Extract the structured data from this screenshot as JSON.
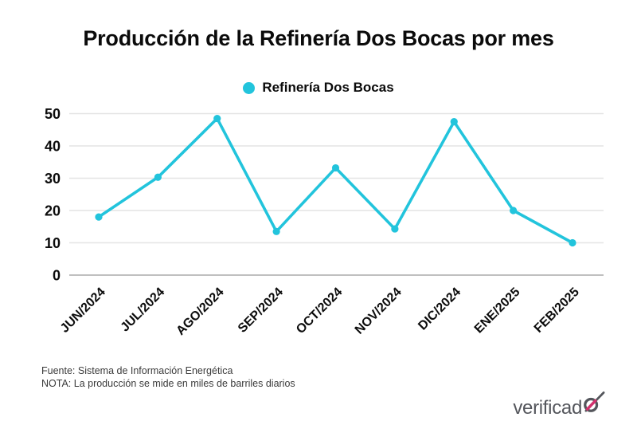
{
  "title": "Producción de la Refinería Dos Bocas por mes",
  "legend": {
    "label": "Refinería Dos Bocas",
    "marker_color": "#22c4dc"
  },
  "chart_data": {
    "type": "line",
    "categories": [
      "JUN/2024",
      "JUL/2024",
      "AGO/2024",
      "SEP/2024",
      "OCT/2024",
      "NOV/2024",
      "DIC/2024",
      "ENE/2025",
      "FEB/2025"
    ],
    "series": [
      {
        "name": "Refinería Dos Bocas",
        "values": [
          18,
          30.3,
          48.5,
          13.5,
          33.2,
          14.3,
          47.5,
          20,
          10
        ],
        "color": "#22c4dc"
      }
    ],
    "title": "Producción de la Refinería Dos Bocas por mes",
    "xlabel": "",
    "ylabel": "",
    "ylim": [
      0,
      50
    ],
    "yticks": [
      0,
      10,
      20,
      30,
      40,
      50
    ],
    "grid": true,
    "gridline_color": "#e4e4e4",
    "zero_line_color": "#bfbfbf",
    "legend_position": "top-center",
    "x_tick_rotation": -45
  },
  "footer": {
    "source": "Fuente: Sistema de Información Energética",
    "note": "NOTA: La producción se mide en miles de barriles diarios"
  },
  "logo": {
    "text_without_last_o": "verificad",
    "full_text": "verificado",
    "text_color": "#54565c",
    "accent_color": "#d2316d"
  }
}
